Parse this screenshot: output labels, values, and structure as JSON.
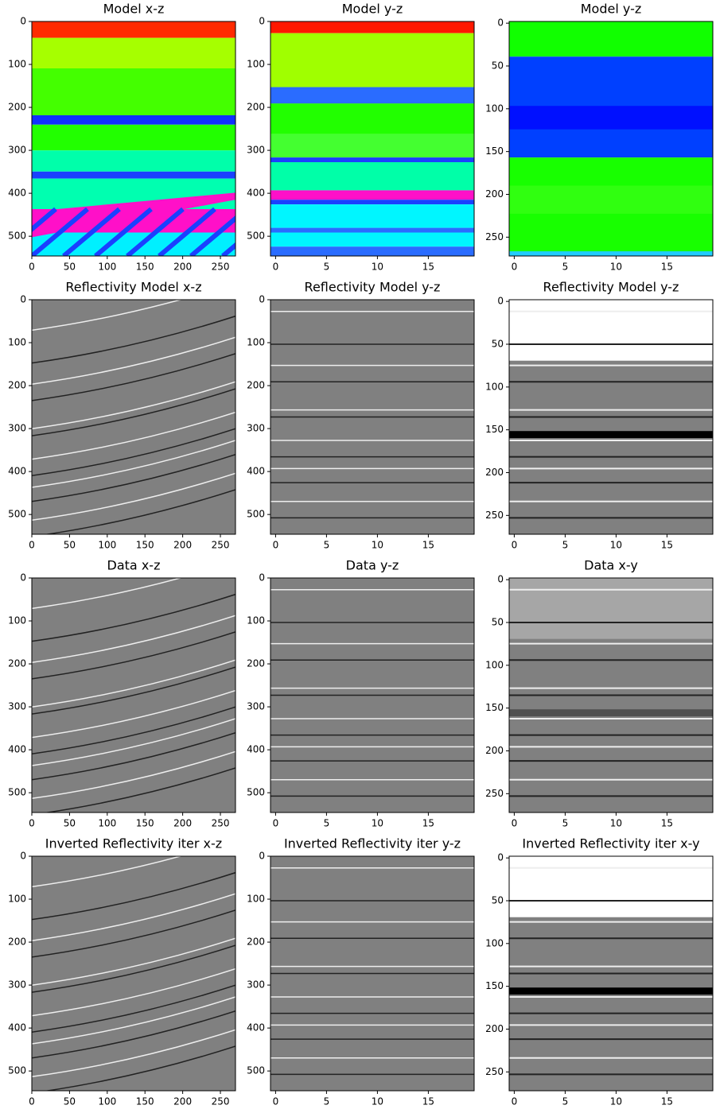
{
  "chart_data": [
    {
      "type": "image",
      "title": "Model x-z",
      "colormap": "hsv",
      "xlim": [
        0,
        270
      ],
      "ylim": [
        546,
        0
      ],
      "xticks": [
        0,
        50,
        100,
        150,
        200,
        250
      ],
      "yticks": [
        0,
        100,
        200,
        300,
        400,
        500
      ]
    },
    {
      "type": "image",
      "title": "Model y-z",
      "colormap": "hsv",
      "xlim": [
        -0.5,
        19.5
      ],
      "ylim": [
        546,
        0
      ],
      "xticks": [
        0,
        5,
        10,
        15
      ],
      "yticks": [
        0,
        100,
        200,
        300,
        400,
        500
      ]
    },
    {
      "type": "image",
      "title": "Model y-z",
      "colormap": "hsv",
      "xlim": [
        -0.5,
        19.5
      ],
      "ylim": [
        272,
        -2
      ],
      "xticks": [
        0,
        5,
        10,
        15
      ],
      "yticks": [
        0,
        50,
        100,
        150,
        200,
        250
      ]
    },
    {
      "type": "image",
      "title": "Reflectivity Model x-z",
      "colormap": "gray",
      "xlim": [
        0,
        270
      ],
      "ylim": [
        546,
        0
      ],
      "xticks": [
        0,
        50,
        100,
        150,
        200,
        250
      ],
      "yticks": [
        0,
        100,
        200,
        300,
        400,
        500
      ]
    },
    {
      "type": "image",
      "title": "Reflectivity Model y-z",
      "colormap": "gray",
      "xlim": [
        -0.5,
        19.5
      ],
      "ylim": [
        546,
        0
      ],
      "xticks": [
        0,
        5,
        10,
        15
      ],
      "yticks": [
        0,
        100,
        200,
        300,
        400,
        500
      ]
    },
    {
      "type": "image",
      "title": "Reflectivity Model y-z",
      "colormap": "gray",
      "xlim": [
        -0.5,
        19.5
      ],
      "ylim": [
        272,
        -2
      ],
      "xticks": [
        0,
        5,
        10,
        15
      ],
      "yticks": [
        0,
        50,
        100,
        150,
        200,
        250
      ]
    },
    {
      "type": "image",
      "title": "Data x-z",
      "colormap": "gray",
      "xlim": [
        0,
        270
      ],
      "ylim": [
        546,
        0
      ],
      "xticks": [
        0,
        50,
        100,
        150,
        200,
        250
      ],
      "yticks": [
        0,
        100,
        200,
        300,
        400,
        500
      ]
    },
    {
      "type": "image",
      "title": "Data y-z",
      "colormap": "gray",
      "xlim": [
        -0.5,
        19.5
      ],
      "ylim": [
        546,
        0
      ],
      "xticks": [
        0,
        5,
        10,
        15
      ],
      "yticks": [
        0,
        100,
        200,
        300,
        400,
        500
      ]
    },
    {
      "type": "image",
      "title": "Data x-y",
      "colormap": "gray",
      "xlim": [
        -0.5,
        19.5
      ],
      "ylim": [
        272,
        -2
      ],
      "xticks": [
        0,
        5,
        10,
        15
      ],
      "yticks": [
        0,
        50,
        100,
        150,
        200,
        250
      ]
    },
    {
      "type": "image",
      "title": "Inverted Reflectivity iter x-z",
      "colormap": "gray",
      "xlim": [
        0,
        270
      ],
      "ylim": [
        546,
        0
      ],
      "xticks": [
        0,
        50,
        100,
        150,
        200,
        250
      ],
      "yticks": [
        0,
        100,
        200,
        300,
        400,
        500
      ]
    },
    {
      "type": "image",
      "title": "Inverted Reflectivity iter y-z",
      "colormap": "gray",
      "xlim": [
        -0.5,
        19.5
      ],
      "ylim": [
        546,
        0
      ],
      "xticks": [
        0,
        5,
        10,
        15
      ],
      "yticks": [
        0,
        100,
        200,
        300,
        400,
        500
      ]
    },
    {
      "type": "image",
      "title": "Inverted Reflectivity iter x-y",
      "colormap": "gray",
      "xlim": [
        -0.5,
        19.5
      ],
      "ylim": [
        272,
        -2
      ],
      "xticks": [
        0,
        5,
        10,
        15
      ],
      "yticks": [
        0,
        50,
        100,
        150,
        200,
        250
      ]
    }
  ]
}
